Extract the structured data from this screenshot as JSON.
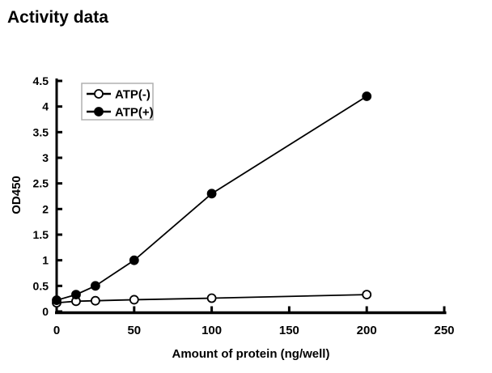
{
  "page": {
    "title": "Activity data"
  },
  "colors": {
    "background": "#ffffff",
    "axis": "#000000",
    "text": "#000000",
    "series": "#000000",
    "legend_border": "#b0b0b0",
    "legend_fill": "#ffffff"
  },
  "chart_data": {
    "type": "line",
    "title": "Activity data",
    "xlabel": "Amount of protein (ng/well)",
    "ylabel": "OD450",
    "xlim": [
      0,
      250
    ],
    "ylim": [
      0,
      4.5
    ],
    "xticks": [
      0,
      50,
      100,
      150,
      200,
      250
    ],
    "yticks": [
      0,
      0.5,
      1,
      1.5,
      2,
      2.5,
      3,
      3.5,
      4,
      4.5
    ],
    "grid": false,
    "legend_position": "upper-left-inside",
    "x": [
      0,
      12.5,
      25,
      50,
      100,
      200
    ],
    "series": [
      {
        "name": "ATP(-)",
        "marker": "open-circle",
        "values": [
          0.17,
          0.2,
          0.21,
          0.23,
          0.26,
          0.33
        ]
      },
      {
        "name": "ATP(+)",
        "marker": "filled-circle",
        "values": [
          0.22,
          0.33,
          0.5,
          1.0,
          2.3,
          4.2
        ]
      }
    ]
  }
}
